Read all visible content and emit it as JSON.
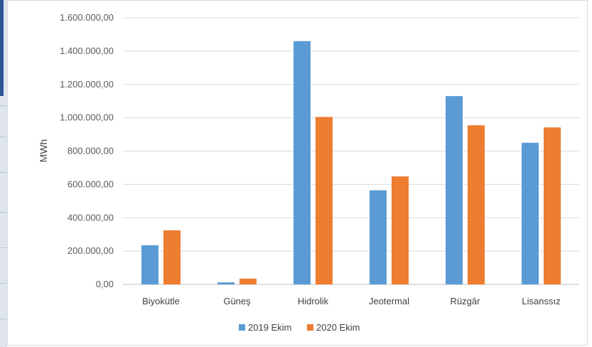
{
  "chart_data": {
    "type": "bar",
    "title": "",
    "xlabel": "",
    "ylabel": "MWh",
    "ylim": [
      0,
      1600000
    ],
    "y_ticks": [
      "0,00",
      "200.000,00",
      "400.000,00",
      "600.000,00",
      "800.000,00",
      "1.000.000,00",
      "1.200.000,00",
      "1.400.000,00",
      "1.600.000,00"
    ],
    "categories": [
      "Biyokütle",
      "Güneş",
      "Hidrolik",
      "Jeotermal",
      "Rüzgâr",
      "Lisanssız"
    ],
    "series": [
      {
        "name": "2019 Ekim",
        "color": "#5b9bd5",
        "values": [
          235000,
          12000,
          1460000,
          565000,
          1130000,
          850000
        ]
      },
      {
        "name": "2020 Ekim",
        "color": "#ed7d31",
        "values": [
          325000,
          35000,
          1005000,
          648000,
          955000,
          942000
        ]
      }
    ],
    "grid": true,
    "legend_position": "bottom"
  }
}
